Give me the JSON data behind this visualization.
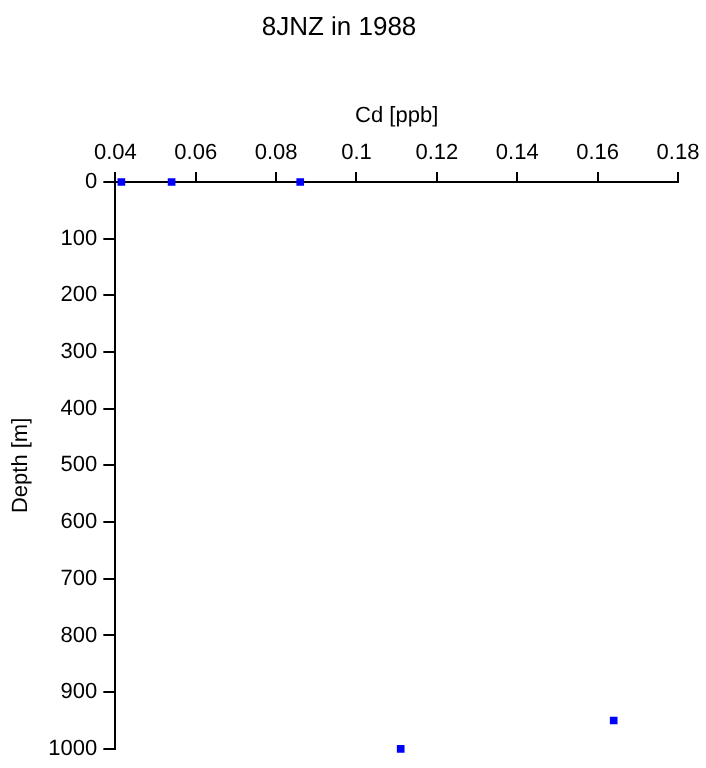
{
  "chart_data": {
    "type": "scatter",
    "title": "8JNZ in 1988",
    "xlabel": "Cd [ppb]",
    "ylabel": "Depth [m]",
    "x": [
      0.0415,
      0.054,
      0.086,
      0.164,
      0.111
    ],
    "series": [
      {
        "color": "#0000ff",
        "values": [
          0,
          0,
          0,
          950,
          1000
        ]
      }
    ],
    "xlim": [
      0.04,
      0.18
    ],
    "xticks": [
      0.04,
      0.06,
      0.08,
      0.1,
      0.12,
      0.14,
      0.16,
      0.18
    ],
    "ylim": [
      1000,
      0
    ],
    "yticks": [
      0,
      100,
      200,
      300,
      400,
      500,
      600,
      700,
      800,
      900,
      1000
    ],
    "grid": false,
    "legend": false,
    "marker": "square"
  }
}
